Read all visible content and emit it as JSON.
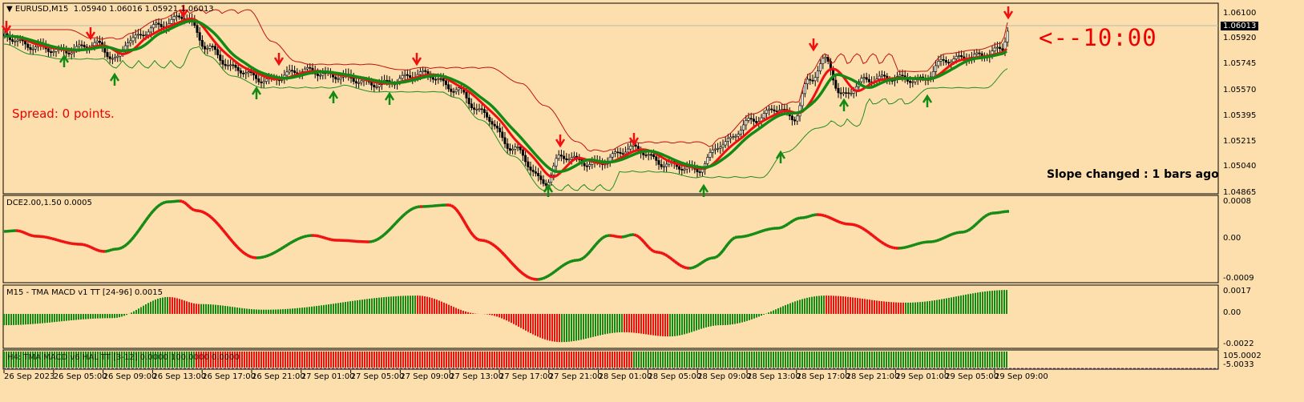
{
  "header": {
    "symbol": "EURUSD,M15",
    "ohlc": "1.05940 1.06016 1.05921 1.06013"
  },
  "overlays": {
    "spread": "Spread: 0 points.",
    "timer": "<--10:00",
    "slope": "Slope changed : 1 bars ago"
  },
  "price_axis": {
    "current": "1.06013",
    "ticks": [
      "1.06100",
      "1.05920",
      "1.05745",
      "1.05570",
      "1.05395",
      "1.05215",
      "1.05040",
      "1.04865"
    ]
  },
  "dce": {
    "label": "DCE2.00,1.50 0.0005",
    "ticks": [
      "0.0008",
      "0.00",
      "-0.0009"
    ]
  },
  "macd": {
    "label": "M15 - TMA MACD v1 TT [24-96] 0.0015",
    "ticks": [
      "0.0017",
      "0.00",
      "-0.0022"
    ]
  },
  "h4": {
    "label": "H4: TMA MACD v6 HAL TT [3-12] 0.0000 100.0000 0.0000",
    "ticks": [
      "105.0002",
      "-5.0033"
    ]
  },
  "time_axis": [
    "26 Sep 2023",
    "26 Sep 05:00",
    "26 Sep 09:00",
    "26 Sep 13:00",
    "26 Sep 17:00",
    "26 Sep 21:00",
    "27 Sep 01:00",
    "27 Sep 05:00",
    "27 Sep 09:00",
    "27 Sep 13:00",
    "27 Sep 17:00",
    "27 Sep 21:00",
    "28 Sep 01:00",
    "28 Sep 05:00",
    "28 Sep 09:00",
    "28 Sep 13:00",
    "28 Sep 17:00",
    "28 Sep 21:00",
    "29 Sep 01:00",
    "29 Sep 05:00",
    "29 Sep 09:00"
  ],
  "colors": {
    "background": "#fddfae",
    "up": "#138a13",
    "down": "#f01010",
    "text": "#000000"
  },
  "icons": {
    "collapse": "triangle-down-icon",
    "sell_signal": "red-down-arrow-icon",
    "buy_signal": "green-up-arrow-icon"
  }
}
